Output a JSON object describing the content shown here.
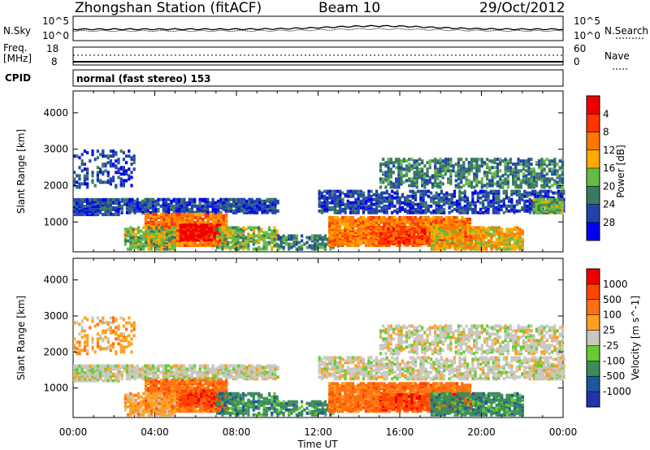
{
  "header": {
    "title": "Zhongshan Station (fitACF)",
    "beam": "Beam 10",
    "date": "29/Oct/2012"
  },
  "labels": {
    "nsky": "N.Sky",
    "freq_top": "Freq.",
    "freq_unit": "[MHz]",
    "cpid": "CPID",
    "nsearch": "N.Search",
    "nave": "Nave",
    "mode_text": "normal (fast stereo) 153",
    "nsky_top": "10^5",
    "nsky_bottom": "10^0",
    "freq_max": "18",
    "freq_min": "8",
    "nsearch_top": "10^5",
    "nsearch_bottom": "10^0",
    "nave_max": "60",
    "nave_min": "0",
    "time_label": "Time UT"
  },
  "chart_data": [
    {
      "type": "heatmap",
      "title": "",
      "xlabel": "Time UT",
      "ylabel": "Slant Range [km]",
      "xlim": [
        0,
        24
      ],
      "ylim": [
        180,
        4600
      ],
      "x_ticks": [
        "00:00",
        "04:00",
        "08:00",
        "12:00",
        "16:00",
        "20:00",
        "00:00"
      ],
      "y_ticks": [
        "1000",
        "2000",
        "3000",
        "4000"
      ],
      "colorbar_label": "Power [dB]",
      "colorbar_ticks": [
        "4",
        "8",
        "12",
        "16",
        "20",
        "24",
        "28"
      ],
      "colorbar_colors": [
        "#0000ee",
        "#2244aa",
        "#3a7a60",
        "#66bb44",
        "#ffaa00",
        "#ff7700",
        "#ff3300",
        "#ee0000"
      ]
    },
    {
      "type": "heatmap",
      "title": "",
      "xlabel": "Time UT",
      "ylabel": "Slant Range [km]",
      "xlim": [
        0,
        24
      ],
      "ylim": [
        180,
        4600
      ],
      "x_ticks": [
        "00:00",
        "04:00",
        "08:00",
        "12:00",
        "16:00",
        "20:00",
        "00:00"
      ],
      "y_ticks": [
        "1000",
        "2000",
        "3000",
        "4000"
      ],
      "colorbar_label": "Velocity [m s^-1]",
      "colorbar_ticks": [
        "1000",
        "500",
        "100",
        "25",
        "-25",
        "-100",
        "-500",
        "-1000"
      ],
      "colorbar_colors": [
        "#2233aa",
        "#1d57a0",
        "#3e8a5a",
        "#66cc33",
        "#c8c8c0",
        "#ffa020",
        "#ff7010",
        "#ff4400",
        "#ee0000"
      ]
    }
  ]
}
